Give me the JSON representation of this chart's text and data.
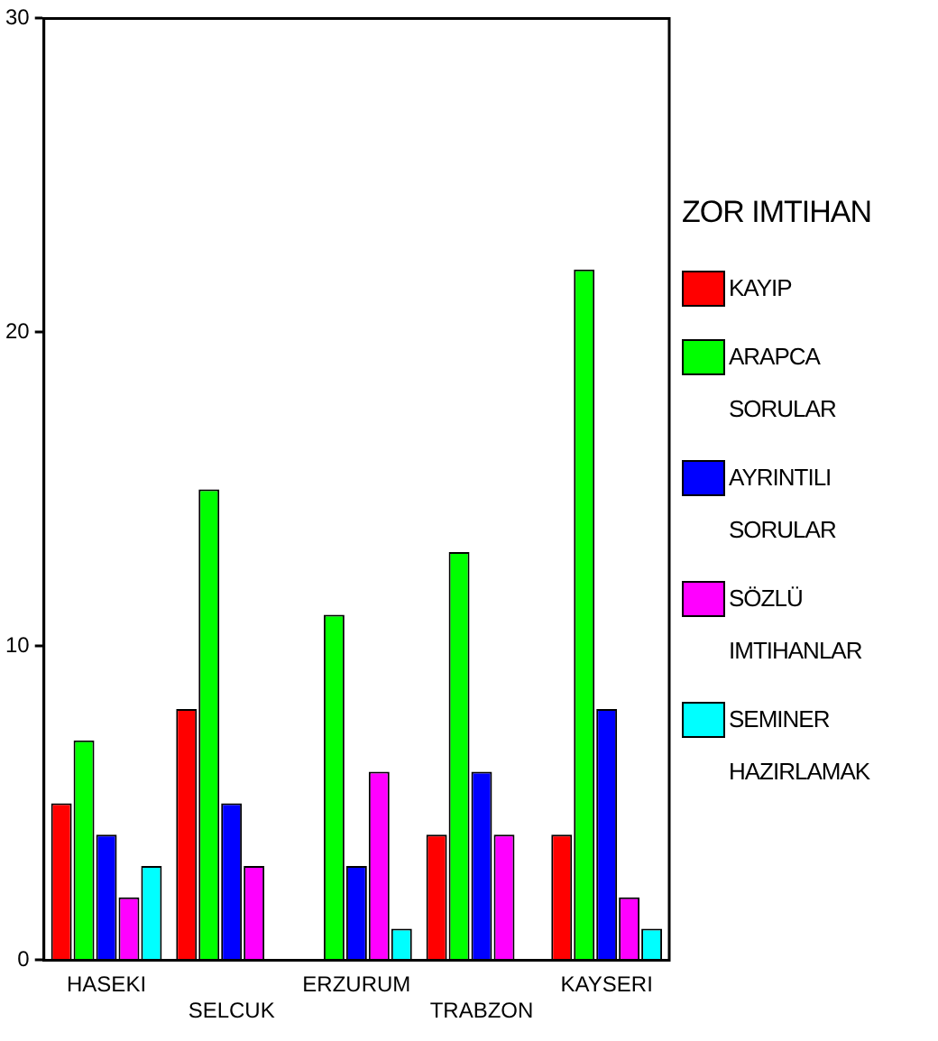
{
  "chart_data": {
    "type": "bar",
    "legend_title": "ZOR IMTIHAN",
    "categories": [
      "HASEKI",
      "SELCUK",
      "ERZURUM",
      "TRABZON",
      "KAYSERI"
    ],
    "series": [
      {
        "name": "KAYIP",
        "color": "#ff0000",
        "values": [
          5,
          8,
          null,
          4,
          4
        ]
      },
      {
        "name": "ARAPCA SORULAR",
        "color": "#00ff00",
        "values": [
          7,
          15,
          11,
          13,
          22
        ]
      },
      {
        "name": "AYRINTILI SORULAR",
        "color": "#0000ff",
        "values": [
          4,
          5,
          3,
          6,
          8
        ]
      },
      {
        "name": "SÖZLÜ IMTIHANLAR",
        "color": "#ff00ff",
        "values": [
          2,
          3,
          6,
          4,
          2
        ]
      },
      {
        "name": "SEMINER HAZIRLAMAK",
        "color": "#00ffff",
        "values": [
          3,
          null,
          1,
          null,
          1
        ]
      }
    ],
    "ylim": [
      0,
      30
    ],
    "yticks": [
      0,
      10,
      20,
      30
    ],
    "grid": false,
    "legend": "right"
  }
}
